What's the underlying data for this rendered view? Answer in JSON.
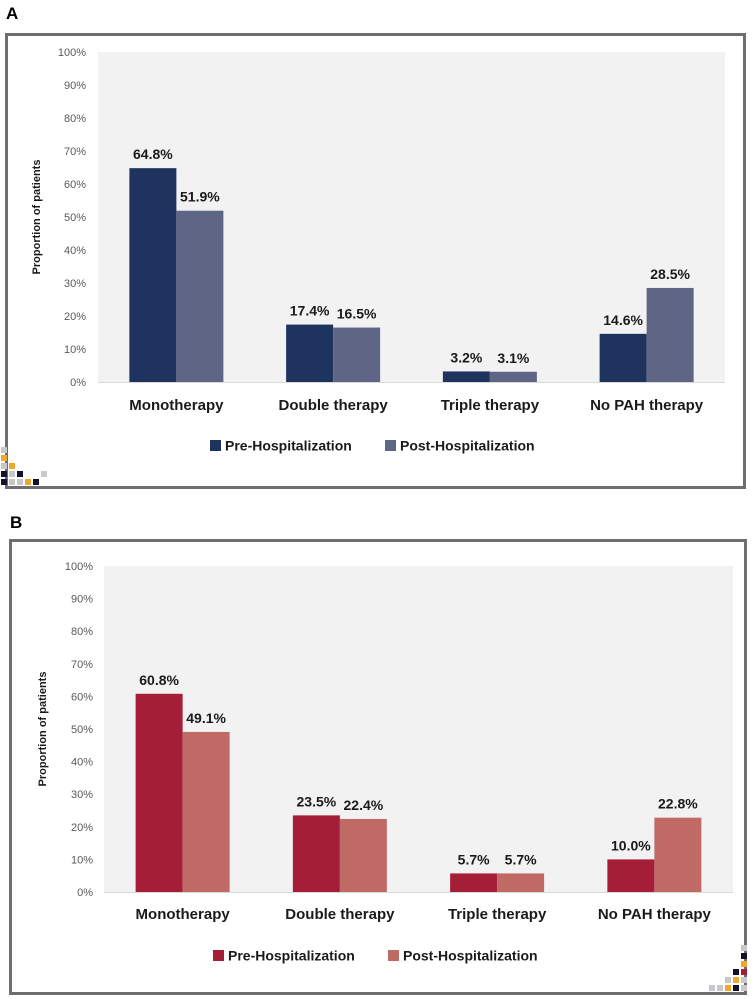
{
  "panels": [
    {
      "letter": "A"
    },
    {
      "letter": "B"
    }
  ],
  "colors": {
    "a_pre": "#1e345f",
    "a_post": "#5f6584",
    "b_pre": "#a31e36",
    "b_post": "#c06a66",
    "plot_bg": "#f2f2f2",
    "deco_black": "#15112b",
    "deco_orange": "#f0a82c",
    "deco_gray": "#c8c8cc",
    "deco_red": "#a31e36"
  },
  "chart_data": [
    {
      "type": "bar",
      "panel": "A",
      "categories": [
        "Monotherapy",
        "Double therapy",
        "Triple therapy",
        "No PAH therapy"
      ],
      "series": [
        {
          "name": "Pre-Hospitalization",
          "values": [
            64.8,
            17.4,
            3.2,
            14.6
          ],
          "labels": [
            "64.8%",
            "17.4%",
            "3.2%",
            "14.6%"
          ]
        },
        {
          "name": "Post-Hospitalization",
          "values": [
            51.9,
            16.5,
            3.1,
            28.5
          ],
          "labels": [
            "51.9%",
            "16.5%",
            "3.1%",
            "28.5%"
          ]
        }
      ],
      "ylabel": "Proportion of patients",
      "ylim": [
        0,
        100
      ],
      "yticks": [
        "0%",
        "10%",
        "20%",
        "30%",
        "40%",
        "50%",
        "60%",
        "70%",
        "80%",
        "90%",
        "100%"
      ],
      "legend": "bottom"
    },
    {
      "type": "bar",
      "panel": "B",
      "categories": [
        "Monotherapy",
        "Double therapy",
        "Triple therapy",
        "No PAH therapy"
      ],
      "series": [
        {
          "name": "Pre-Hospitalization",
          "values": [
            60.8,
            23.5,
            5.7,
            10.0
          ],
          "labels": [
            "60.8%",
            "23.5%",
            "5.7%",
            "10.0%"
          ]
        },
        {
          "name": "Post-Hospitalization",
          "values": [
            49.1,
            22.4,
            5.7,
            22.8
          ],
          "labels": [
            "49.1%",
            "22.4%",
            "5.7%",
            "22.8%"
          ]
        }
      ],
      "ylabel": "Proportion of patients",
      "ylim": [
        0,
        100
      ],
      "yticks": [
        "0%",
        "10%",
        "20%",
        "30%",
        "40%",
        "50%",
        "60%",
        "70%",
        "80%",
        "90%",
        "100%"
      ],
      "legend": "bottom"
    }
  ]
}
